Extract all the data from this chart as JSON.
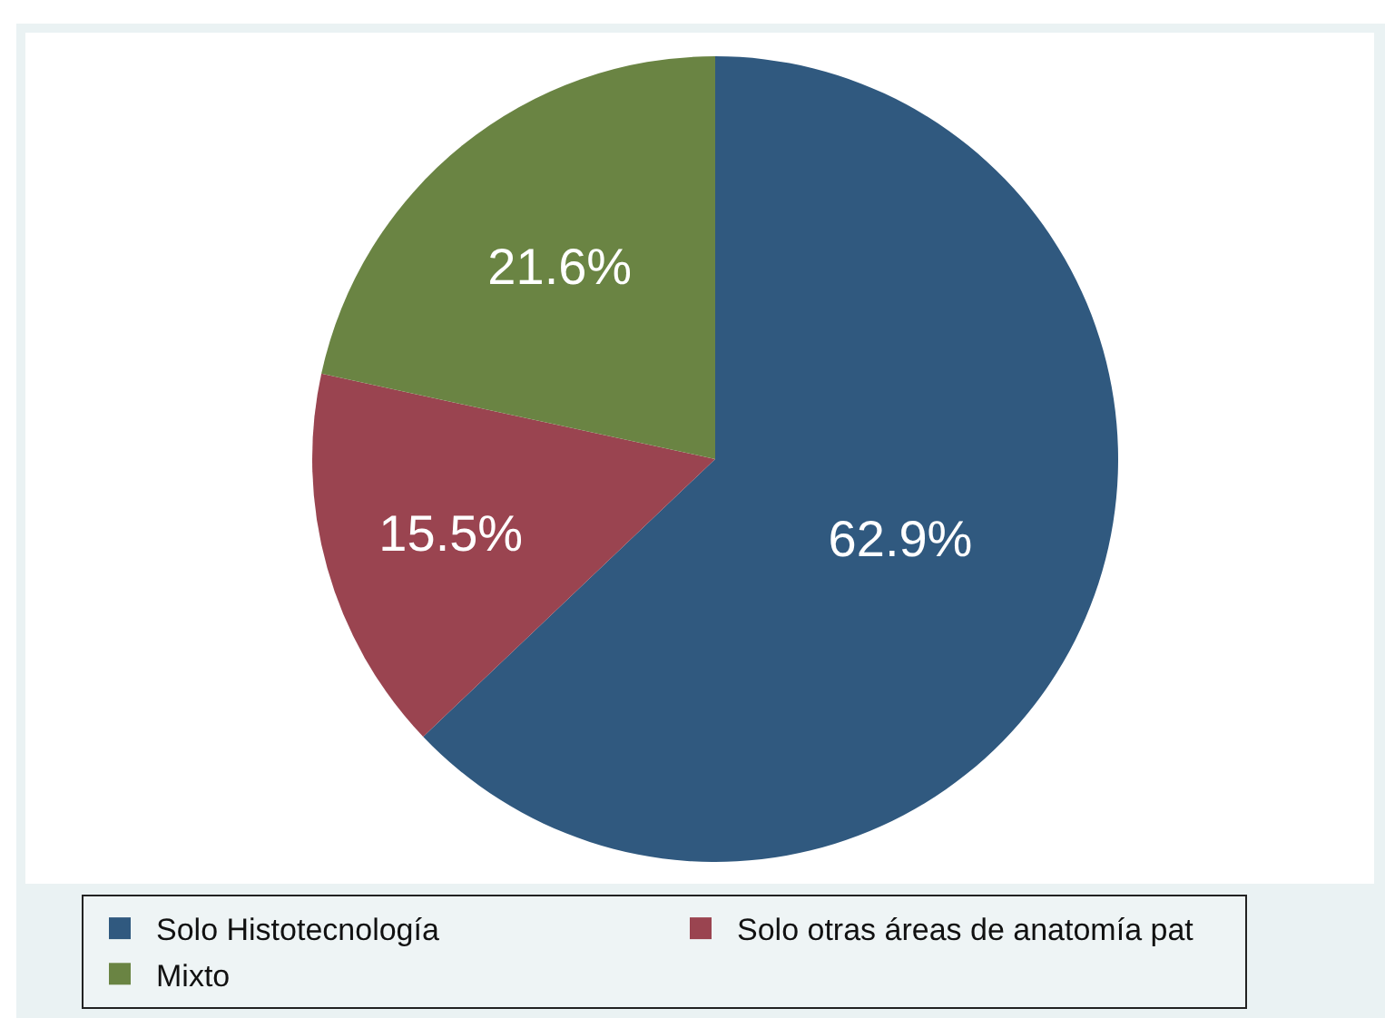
{
  "chart_data": {
    "type": "pie",
    "categories": [
      "Solo Histotecnología",
      "Solo otras áreas de anatomía pat",
      "Mixto"
    ],
    "values": [
      62.9,
      15.5,
      21.6
    ],
    "value_labels": [
      "62.9%",
      "15.5%",
      "21.6%"
    ],
    "colors": [
      "#30597f",
      "#9a4450",
      "#6a8443"
    ],
    "legend": "bottom"
  }
}
